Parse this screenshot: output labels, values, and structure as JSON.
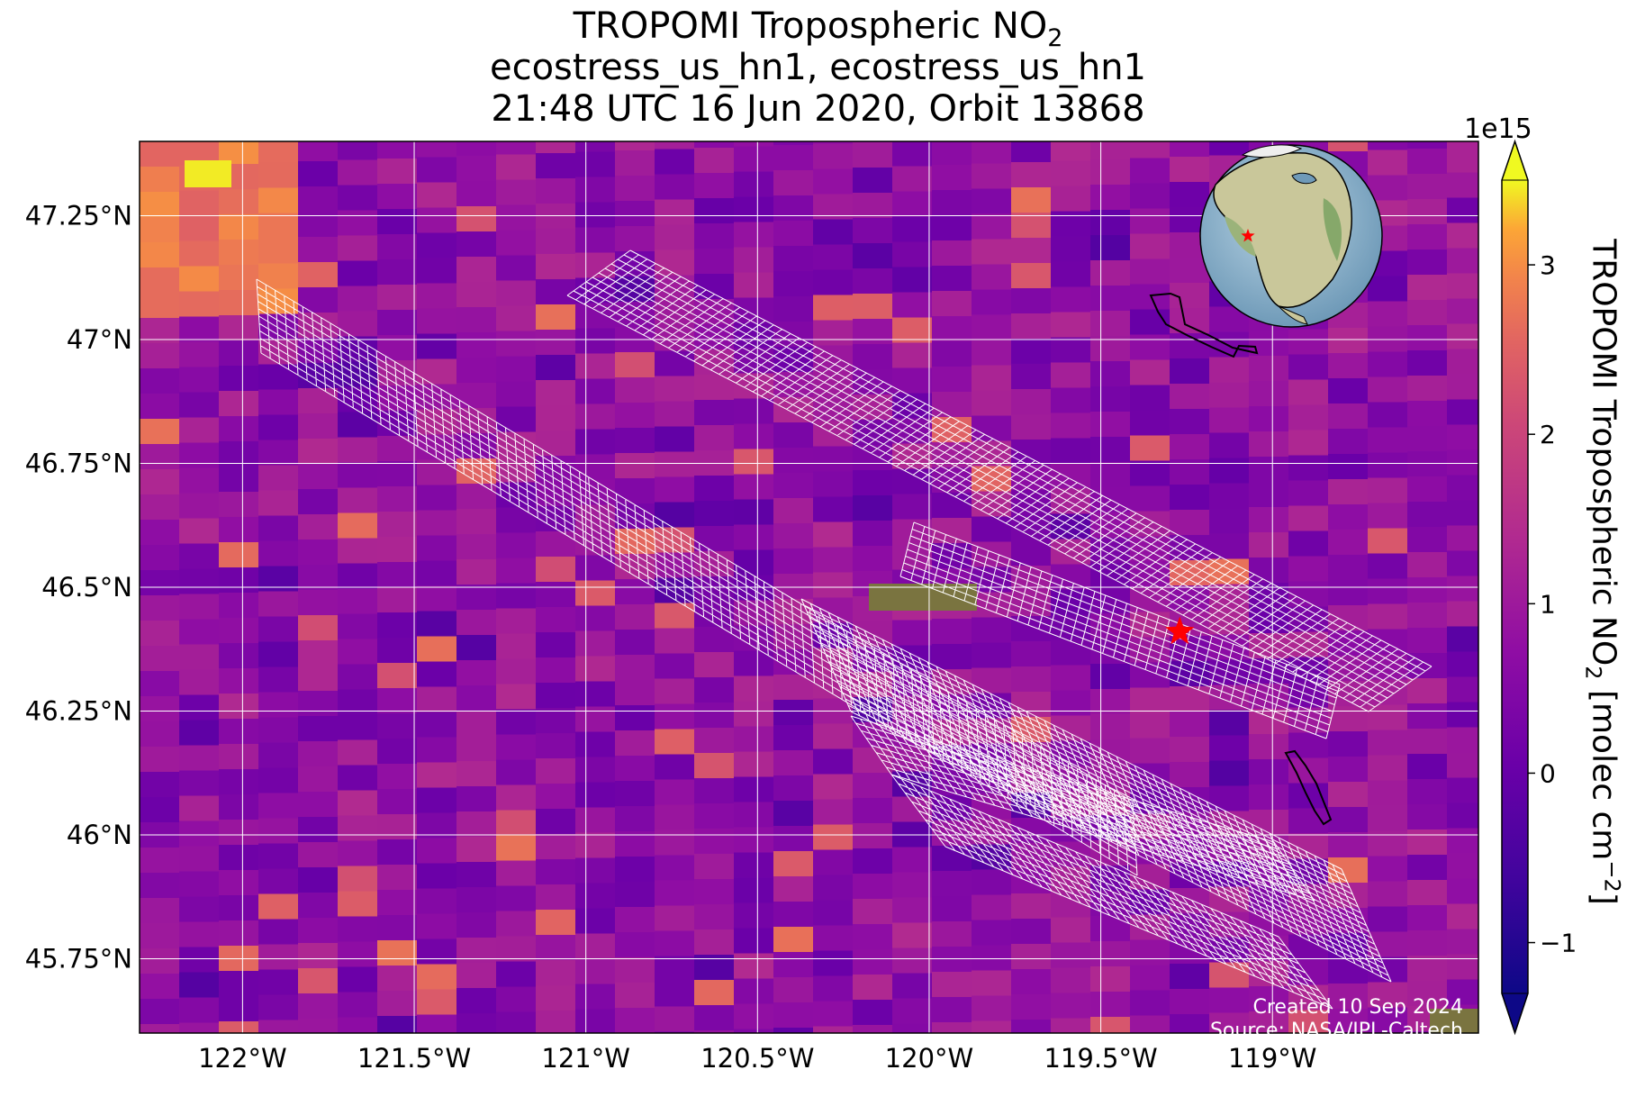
{
  "title": {
    "line1_main": "TROPOMI Tropospheric NO",
    "line1_sub": "2",
    "line2": "ecostress_us_hn1, ecostress_us_hn1",
    "line3": "21:48 UTC 16 Jun 2020, Orbit 13868"
  },
  "map": {
    "lon_range": [
      -122.3,
      -118.4
    ],
    "lat_range": [
      45.6,
      47.4
    ],
    "lon_ticks": [
      {
        "value": -122.0,
        "label": "122°W"
      },
      {
        "value": -121.5,
        "label": "121.5°W"
      },
      {
        "value": -121.0,
        "label": "121°W"
      },
      {
        "value": -120.5,
        "label": "120.5°W"
      },
      {
        "value": -120.0,
        "label": "120°W"
      },
      {
        "value": -119.5,
        "label": "119.5°W"
      },
      {
        "value": -119.0,
        "label": "119°W"
      }
    ],
    "lat_ticks": [
      {
        "value": 47.25,
        "label": "47.25°N"
      },
      {
        "value": 47.0,
        "label": "47°N"
      },
      {
        "value": 46.75,
        "label": "46.75°N"
      },
      {
        "value": 46.5,
        "label": "46.5°N"
      },
      {
        "value": 46.25,
        "label": "46.25°N"
      },
      {
        "value": 46.0,
        "label": "46°N"
      },
      {
        "value": 45.75,
        "label": "45.75°N"
      }
    ],
    "target_marker": {
      "lon": -119.27,
      "lat": 46.41,
      "color": "#ff0000",
      "icon": "star-icon"
    },
    "gridline_color": "#ffffff",
    "swath_color": "#ffffff",
    "coastline_color": "#000000"
  },
  "colorbar": {
    "exponent_label": "1e15",
    "label_main": "TROPOMI Tropospheric NO",
    "label_sub": "2",
    "label_units_pre": " [molec cm",
    "label_units_sup": "−2",
    "label_units_post": "]",
    "range": [
      -1.3,
      3.5
    ],
    "ticks": [
      {
        "value": 3,
        "label": "3"
      },
      {
        "value": 2,
        "label": "2"
      },
      {
        "value": 1,
        "label": "1"
      },
      {
        "value": 0,
        "label": "0"
      },
      {
        "value": -1,
        "label": "−1"
      }
    ],
    "colormap": "plasma"
  },
  "credits": {
    "created": "Created 10 Sep 2024",
    "source": "Source: NASA/JPL-Caltech"
  },
  "inset_globe": {
    "icon": "globe-icon",
    "marker_color": "#ff0000"
  }
}
